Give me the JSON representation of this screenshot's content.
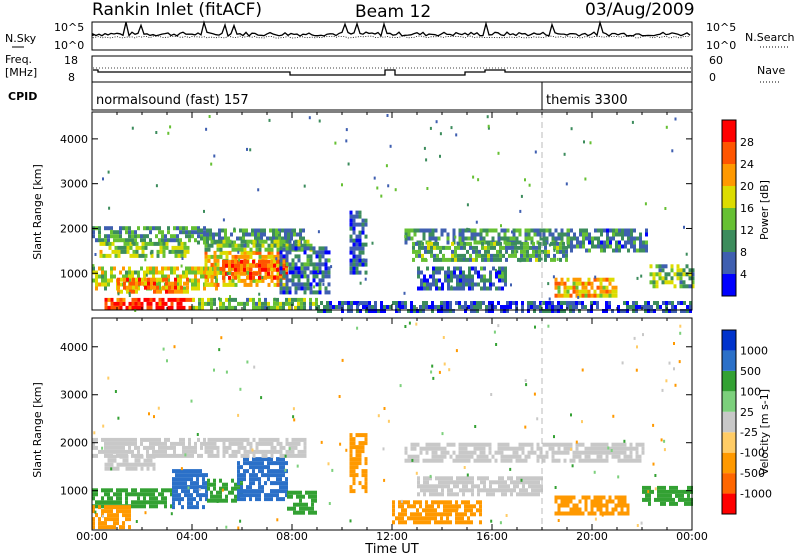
{
  "header": {
    "station": "Rankin Inlet (fitACF)",
    "beam": "Beam 12",
    "date": "03/Aug/2009"
  },
  "top_panels": {
    "nsky_label": "N.Sky",
    "nsky_ticks": [
      "10^5",
      "10^0"
    ],
    "nsearch_label": "N.Search",
    "nsearch_ticks": [
      "10^5",
      "10^0"
    ],
    "freq_label_1": "Freq.",
    "freq_label_2": "[MHz]",
    "freq_ticks": [
      "18",
      "8"
    ],
    "nave_label": "Nave",
    "nave_ticks": [
      "60",
      "0"
    ],
    "cpid_label": "CPID",
    "cpid_entries": [
      {
        "label": "normalsound (fast) 157",
        "start_hour": 0
      },
      {
        "label": "themis 3300",
        "start_hour": 18
      }
    ]
  },
  "colors": {
    "background": "#ffffff",
    "axis": "#000000",
    "power_scale": [
      "#0000ff",
      "#3f5fb0",
      "#3c8c5c",
      "#66c033",
      "#dcdc00",
      "#ff9900",
      "#ff5500",
      "#ff0000"
    ],
    "velocity_scale": [
      "#ff0000",
      "#ff6600",
      "#ff9900",
      "#ffcc66",
      "#c8c8c8",
      "#7cd07c",
      "#33a133",
      "#2b70c8",
      "#0033cc"
    ]
  },
  "chart_data": [
    {
      "type": "heatmap",
      "name": "power",
      "xlabel": "",
      "ylabel": "Slant Range [km]",
      "xlim": [
        0,
        24
      ],
      "ylim": [
        180,
        4600
      ],
      "yticks": [
        1000,
        2000,
        3000,
        4000
      ],
      "colorbar_label": "Power [dB]",
      "colorbar_ticks": [
        "4",
        "8",
        "12",
        "16",
        "20",
        "24",
        "28"
      ],
      "clim": [
        0,
        30
      ],
      "bands": [
        {
          "t0": 0.0,
          "t1": 4.5,
          "r0": 1700,
          "r1": 2050,
          "v": 10
        },
        {
          "t0": 0.3,
          "t1": 3.8,
          "r0": 1350,
          "r1": 1700,
          "v": 14
        },
        {
          "t0": 0.0,
          "t1": 5.0,
          "r0": 700,
          "r1": 1150,
          "v": 16
        },
        {
          "t0": 1.0,
          "t1": 3.8,
          "r0": 550,
          "r1": 900,
          "v": 22
        },
        {
          "t0": 4.5,
          "t1": 7.8,
          "r0": 700,
          "r1": 1500,
          "v": 19
        },
        {
          "t0": 5.2,
          "t1": 7.8,
          "r0": 900,
          "r1": 1300,
          "v": 24
        },
        {
          "t0": 4.2,
          "t1": 8.5,
          "r0": 1700,
          "r1": 2000,
          "v": 9
        },
        {
          "t0": 4.5,
          "t1": 8.8,
          "r0": 1500,
          "r1": 1750,
          "v": 12
        },
        {
          "t0": 7.5,
          "t1": 9.5,
          "r0": 600,
          "r1": 1600,
          "v": 7
        },
        {
          "t0": 0.5,
          "t1": 4.0,
          "r0": 200,
          "r1": 450,
          "v": 27
        },
        {
          "t0": 4.0,
          "t1": 9.0,
          "r0": 200,
          "r1": 450,
          "v": 12
        },
        {
          "t0": 10.3,
          "t1": 11.0,
          "r0": 1000,
          "r1": 2400,
          "v": 6
        },
        {
          "t0": 12.5,
          "t1": 19.0,
          "r0": 1700,
          "r1": 2000,
          "v": 9
        },
        {
          "t0": 12.8,
          "t1": 19.0,
          "r0": 1300,
          "r1": 1700,
          "v": 11
        },
        {
          "t0": 19.0,
          "t1": 22.2,
          "r0": 1500,
          "r1": 2000,
          "v": 8
        },
        {
          "t0": 22.3,
          "t1": 24.0,
          "r0": 700,
          "r1": 1200,
          "v": 12
        },
        {
          "t0": 18.5,
          "t1": 21.0,
          "r0": 500,
          "r1": 900,
          "v": 19
        },
        {
          "t0": 13.0,
          "t1": 16.5,
          "r0": 700,
          "r1": 1150,
          "v": 7
        },
        {
          "t0": 9.0,
          "t1": 24.0,
          "r0": 200,
          "r1": 380,
          "v": 5
        }
      ],
      "vertical_marker_hour": 18
    },
    {
      "type": "heatmap",
      "name": "velocity",
      "xlabel": "Time UT",
      "ylabel": "Slant Range [km]",
      "xlim": [
        0,
        24
      ],
      "ylim": [
        180,
        4600
      ],
      "xticks": [
        "00:00",
        "04:00",
        "08:00",
        "12:00",
        "16:00",
        "20:00",
        "00:00"
      ],
      "yticks": [
        1000,
        2000,
        3000,
        4000
      ],
      "colorbar_label": "Velocity [m s-1]",
      "colorbar_ticks": [
        "1000",
        "500",
        "100",
        "25",
        "-25",
        "-100",
        "-500",
        "-1000"
      ],
      "bands": [
        {
          "t0": 0.0,
          "t1": 4.5,
          "r0": 1750,
          "r1": 2100,
          "v": 0
        },
        {
          "t0": 0.5,
          "t1": 2.5,
          "r0": 1450,
          "r1": 1750,
          "v": 0
        },
        {
          "t0": 0.0,
          "t1": 3.2,
          "r0": 700,
          "r1": 1050,
          "v": 120
        },
        {
          "t0": 3.2,
          "t1": 4.6,
          "r0": 650,
          "r1": 1450,
          "v": 900
        },
        {
          "t0": 4.6,
          "t1": 6.0,
          "r0": 800,
          "r1": 1250,
          "v": 150
        },
        {
          "t0": 5.8,
          "t1": 7.8,
          "r0": 800,
          "r1": 1700,
          "v": 900
        },
        {
          "t0": 7.8,
          "t1": 9.0,
          "r0": 550,
          "r1": 1000,
          "v": 120
        },
        {
          "t0": 4.5,
          "t1": 8.5,
          "r0": 1750,
          "r1": 2100,
          "v": 0
        },
        {
          "t0": 0.0,
          "t1": 1.5,
          "r0": 250,
          "r1": 700,
          "v": -200
        },
        {
          "t0": 12.5,
          "t1": 22.0,
          "r0": 1600,
          "r1": 2000,
          "v": 0
        },
        {
          "t0": 12.0,
          "t1": 15.5,
          "r0": 300,
          "r1": 800,
          "v": -250
        },
        {
          "t0": 18.5,
          "t1": 21.5,
          "r0": 500,
          "r1": 900,
          "v": -300
        },
        {
          "t0": 22.0,
          "t1": 24.0,
          "r0": 700,
          "r1": 1100,
          "v": 110
        },
        {
          "t0": 10.3,
          "t1": 11.0,
          "r0": 1000,
          "r1": 2200,
          "v": -200
        },
        {
          "t0": 13.0,
          "t1": 18.0,
          "r0": 900,
          "r1": 1300,
          "v": 0
        }
      ],
      "vertical_marker_hour": 18
    }
  ]
}
